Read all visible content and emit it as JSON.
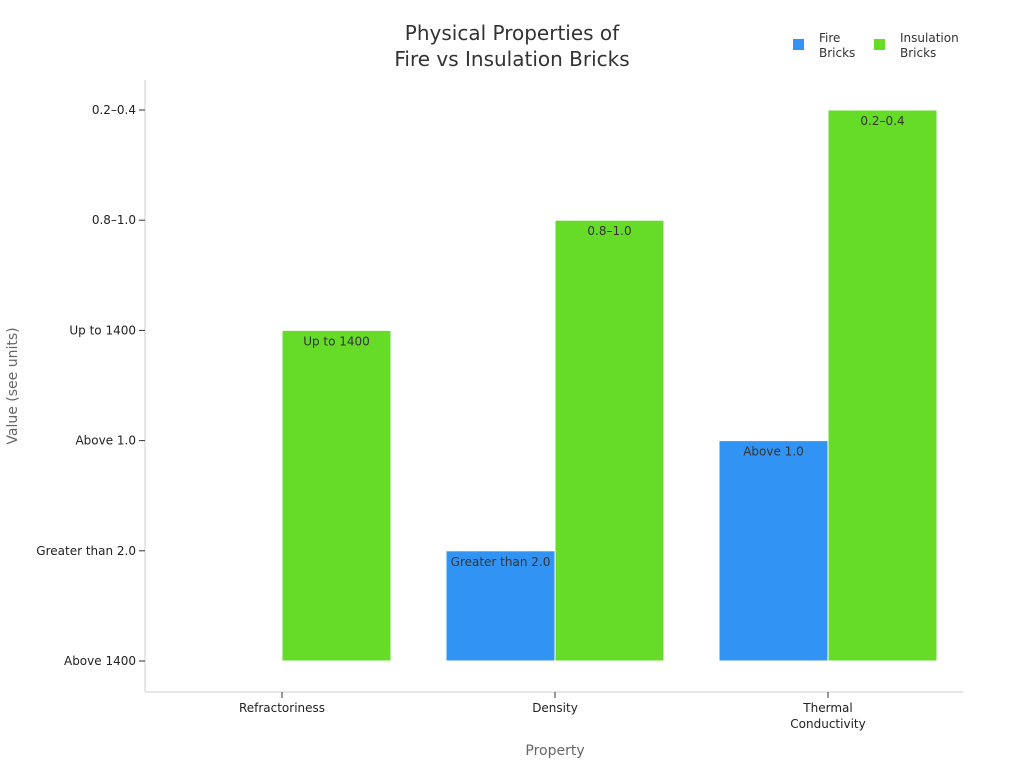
{
  "chart_data": {
    "type": "bar",
    "title": [
      "Physical Properties of",
      "Fire vs Insulation Bricks"
    ],
    "xlabel": "Property",
    "ylabel": "Value (see units)",
    "categories": [
      [
        "Refractoriness"
      ],
      [
        "Density"
      ],
      [
        "Thermal",
        "Conductivity"
      ]
    ],
    "y_ticks": [
      "Above 1400",
      "Greater than 2.0",
      "Above 1.0",
      "Up to 1400",
      "0.8–1.0",
      "0.2–0.4"
    ],
    "ylim": [
      0,
      5
    ],
    "series": [
      {
        "name": [
          "Fire",
          "Bricks"
        ],
        "color": "#3194f5",
        "values": [
          0,
          1,
          2
        ],
        "labels": [
          "",
          "Greater than 2.0",
          "Above 1.0"
        ]
      },
      {
        "name": [
          "Insulation",
          "Bricks"
        ],
        "color": "#66dc29",
        "values": [
          3,
          4,
          5
        ],
        "labels": [
          "Up to 1400",
          "0.8–1.0",
          "0.2–0.4"
        ]
      }
    ],
    "grid": false,
    "legend": "top-right"
  }
}
